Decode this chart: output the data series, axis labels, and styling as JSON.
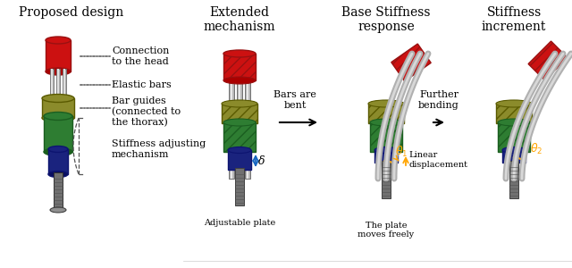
{
  "title_left": "Proposed design",
  "title_col2": "Extended\nmechanism",
  "title_col3": "Base Stiffness\nresponse",
  "title_col4": "Stiffness\nincrement",
  "label_connection": "Connection\nto the head",
  "label_elastic": "Elastic bars",
  "label_guides": "Bar guides\n(connected to\nthe thorax)",
  "label_stiffness": "Stiffness adjusting\nmechanism",
  "label_bars_bent": "Bars are\nbent",
  "label_further": "Further\nbending",
  "label_adjustable": "Adjustable plate",
  "label_plate_moves": "The plate\nmoves freely",
  "label_linear": "Linear\ndisplacement",
  "label_delta": "δ",
  "label_theta1": "θ₁",
  "label_theta2": "θ₂",
  "bg_color": "#ffffff",
  "red_color": "#cc1111",
  "red_dark": "#991111",
  "olive_color": "#8b8b2b",
  "green_color": "#2e7d32",
  "blue_color": "#1a237e",
  "gray_color": "#888888",
  "gray_light": "#cccccc",
  "arrow_color": "#ffa500",
  "blue_arrow": "#1565c0",
  "text_color": "#000000",
  "font_size_title": 10,
  "font_size_label": 8.0,
  "font_size_small": 7.0
}
